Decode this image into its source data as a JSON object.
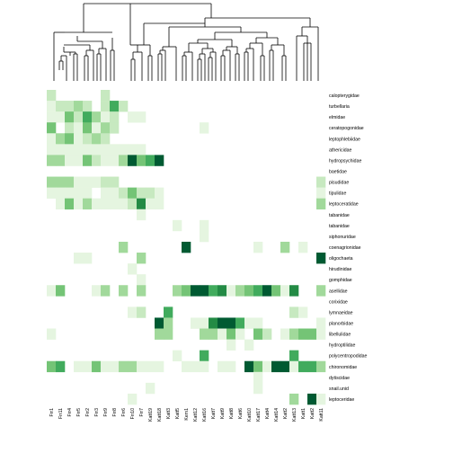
{
  "chart_data": {
    "type": "heatmap",
    "title": "",
    "xlabel": "",
    "ylabel": "",
    "color_scale": [
      "#ffffff",
      "#e5f5e0",
      "#c7e9c0",
      "#a1d99b",
      "#74c476",
      "#41ab5d",
      "#238b45",
      "#005a32"
    ],
    "value_range": [
      0,
      7
    ],
    "columns": [
      "Frr1",
      "Frr11",
      "Frr4",
      "Frr5",
      "Frr2",
      "Frr3",
      "Frr9",
      "Frr8",
      "Frr6",
      "Frr10",
      "Frr7",
      "Katt19",
      "Katt18",
      "Katt3",
      "Katt5",
      "Kem1",
      "Katt12",
      "Katt16",
      "Katt7",
      "Katt9",
      "Katt8",
      "Katt6",
      "Katt10",
      "Katt17",
      "Katt4",
      "Katt14",
      "Katt2",
      "Katt13",
      "Katt1",
      "Katt2",
      "Katt11"
    ],
    "rows": [
      "calopterygidae",
      "turbellaria",
      "elmidae",
      "ceratopogonidae",
      "leptophlebiidae",
      "athericidae",
      "hydropsychidae",
      "baetidae",
      "pisudidae",
      "tipulidae",
      "leptoceratidae",
      "tabanidae",
      "tabanidae",
      "siphonuridae",
      "coenagrionidae",
      "oligochaeta",
      "hirudinidae",
      "gomphidae",
      "asellidae",
      "corixidae",
      "lymnaeidae",
      "planorbidae",
      "libellulidae",
      "hydroptilidae",
      "polycentropodidae",
      "chironomidae",
      "dytiscidae",
      "snail.unid",
      "leptoceridae"
    ],
    "values": [
      [
        2,
        0,
        0,
        0,
        0,
        0,
        2,
        0,
        0,
        0,
        0,
        0,
        0,
        0,
        0,
        0,
        0,
        0,
        0,
        0,
        0,
        0,
        0,
        0,
        0,
        0,
        0,
        0,
        0,
        0,
        0
      ],
      [
        1,
        2,
        2,
        3,
        2,
        0,
        2,
        5,
        2,
        0,
        0,
        0,
        0,
        0,
        0,
        0,
        0,
        0,
        0,
        0,
        0,
        0,
        0,
        0,
        0,
        0,
        0,
        0,
        0,
        0,
        0
      ],
      [
        1,
        1,
        4,
        2,
        5,
        3,
        1,
        2,
        0,
        1,
        1,
        0,
        0,
        0,
        0,
        0,
        0,
        0,
        0,
        0,
        0,
        0,
        0,
        0,
        0,
        0,
        0,
        0,
        0,
        0,
        0
      ],
      [
        4,
        0,
        2,
        1,
        4,
        1,
        3,
        2,
        0,
        0,
        0,
        0,
        0,
        0,
        0,
        0,
        0,
        1,
        0,
        0,
        0,
        0,
        0,
        0,
        0,
        0,
        0,
        0,
        0,
        0,
        0
      ],
      [
        1,
        3,
        4,
        1,
        2,
        3,
        2,
        0,
        0,
        0,
        0,
        0,
        0,
        0,
        0,
        0,
        0,
        0,
        0,
        0,
        0,
        0,
        0,
        0,
        0,
        0,
        0,
        0,
        0,
        0,
        0
      ],
      [
        1,
        1,
        1,
        1,
        1,
        1,
        1,
        1,
        1,
        1,
        1,
        0,
        0,
        0,
        0,
        0,
        0,
        0,
        0,
        0,
        0,
        0,
        0,
        0,
        0,
        0,
        0,
        0,
        0,
        0,
        0
      ],
      [
        3,
        3,
        1,
        1,
        4,
        2,
        1,
        1,
        3,
        7,
        4,
        5,
        7,
        0,
        0,
        0,
        0,
        0,
        0,
        0,
        0,
        0,
        0,
        0,
        0,
        0,
        0,
        0,
        0,
        0,
        0
      ],
      [
        0,
        0,
        0,
        0,
        0,
        0,
        0,
        0,
        0,
        0,
        0,
        0,
        0,
        0,
        0,
        0,
        0,
        0,
        0,
        0,
        0,
        0,
        0,
        0,
        0,
        0,
        0,
        0,
        0,
        0,
        0
      ],
      [
        3,
        3,
        3,
        1,
        1,
        1,
        2,
        2,
        0,
        0,
        0,
        0,
        0,
        0,
        0,
        0,
        0,
        0,
        0,
        0,
        0,
        0,
        0,
        0,
        0,
        0,
        0,
        0,
        0,
        0,
        2
      ],
      [
        1,
        1,
        1,
        1,
        1,
        0,
        1,
        1,
        2,
        4,
        2,
        2,
        1,
        0,
        0,
        0,
        0,
        0,
        0,
        0,
        0,
        0,
        0,
        0,
        0,
        0,
        0,
        0,
        0,
        0,
        1
      ],
      [
        0,
        1,
        4,
        1,
        3,
        1,
        1,
        1,
        1,
        2,
        6,
        1,
        1,
        0,
        0,
        0,
        0,
        0,
        0,
        0,
        0,
        0,
        0,
        0,
        0,
        0,
        0,
        0,
        0,
        0,
        3
      ],
      [
        0,
        0,
        0,
        0,
        0,
        0,
        0,
        0,
        0,
        0,
        1,
        0,
        0,
        0,
        0,
        0,
        0,
        0,
        0,
        0,
        0,
        0,
        0,
        0,
        0,
        0,
        0,
        0,
        0,
        0,
        0
      ],
      [
        0,
        0,
        0,
        0,
        0,
        0,
        0,
        0,
        0,
        0,
        0,
        0,
        0,
        0,
        1,
        0,
        0,
        1,
        0,
        0,
        0,
        0,
        0,
        0,
        0,
        0,
        0,
        0,
        0,
        0,
        0
      ],
      [
        0,
        0,
        0,
        0,
        0,
        0,
        0,
        0,
        0,
        0,
        0,
        0,
        0,
        0,
        0,
        0,
        0,
        1,
        0,
        0,
        0,
        0,
        0,
        0,
        0,
        0,
        0,
        0,
        0,
        0,
        0
      ],
      [
        0,
        0,
        0,
        0,
        0,
        0,
        0,
        0,
        3,
        0,
        0,
        0,
        0,
        0,
        0,
        7,
        0,
        0,
        0,
        0,
        0,
        0,
        0,
        1,
        0,
        0,
        3,
        0,
        1,
        0,
        0
      ],
      [
        0,
        0,
        0,
        1,
        1,
        0,
        0,
        0,
        0,
        0,
        3,
        0,
        0,
        0,
        0,
        0,
        0,
        0,
        0,
        0,
        0,
        0,
        0,
        0,
        0,
        0,
        0,
        0,
        0,
        0,
        7
      ],
      [
        0,
        0,
        0,
        0,
        0,
        0,
        0,
        0,
        0,
        1,
        0,
        0,
        0,
        0,
        0,
        0,
        0,
        0,
        0,
        0,
        0,
        0,
        0,
        0,
        0,
        0,
        0,
        0,
        0,
        0,
        0
      ],
      [
        0,
        0,
        0,
        0,
        0,
        0,
        0,
        0,
        0,
        0,
        1,
        0,
        0,
        0,
        0,
        0,
        0,
        0,
        0,
        0,
        0,
        0,
        0,
        0,
        0,
        0,
        0,
        0,
        0,
        0,
        0
      ],
      [
        1,
        4,
        0,
        0,
        0,
        1,
        3,
        0,
        3,
        0,
        3,
        0,
        0,
        0,
        3,
        4,
        7,
        7,
        5,
        6,
        1,
        3,
        4,
        5,
        7,
        4,
        1,
        6,
        0,
        0,
        3
      ],
      [
        0,
        0,
        0,
        0,
        0,
        0,
        0,
        0,
        0,
        0,
        0,
        0,
        0,
        0,
        0,
        0,
        0,
        0,
        0,
        0,
        0,
        0,
        0,
        0,
        0,
        0,
        0,
        0,
        0,
        0,
        0
      ],
      [
        0,
        0,
        0,
        0,
        0,
        0,
        0,
        0,
        0,
        1,
        2,
        0,
        0,
        5,
        0,
        0,
        0,
        0,
        0,
        0,
        0,
        0,
        0,
        0,
        0,
        0,
        0,
        2,
        1,
        0,
        0
      ],
      [
        0,
        0,
        0,
        0,
        0,
        0,
        0,
        0,
        0,
        0,
        0,
        0,
        7,
        3,
        0,
        0,
        1,
        1,
        6,
        7,
        7,
        5,
        1,
        1,
        0,
        0,
        0,
        0,
        0,
        0,
        1
      ],
      [
        1,
        0,
        0,
        0,
        0,
        0,
        0,
        0,
        0,
        0,
        0,
        0,
        3,
        3,
        0,
        0,
        0,
        3,
        3,
        1,
        4,
        1,
        0,
        4,
        2,
        0,
        1,
        3,
        4,
        4,
        1
      ],
      [
        0,
        0,
        0,
        0,
        0,
        0,
        0,
        0,
        0,
        0,
        0,
        0,
        0,
        0,
        0,
        0,
        0,
        0,
        0,
        0,
        1,
        0,
        1,
        0,
        0,
        0,
        0,
        0,
        0,
        0,
        0
      ],
      [
        0,
        0,
        0,
        0,
        0,
        0,
        0,
        0,
        0,
        0,
        0,
        0,
        0,
        0,
        1,
        0,
        0,
        5,
        0,
        0,
        0,
        0,
        0,
        0,
        0,
        0,
        0,
        5,
        0,
        0,
        0
      ],
      [
        4,
        5,
        0,
        1,
        1,
        4,
        1,
        1,
        3,
        3,
        1,
        1,
        1,
        0,
        0,
        1,
        1,
        1,
        0,
        1,
        1,
        0,
        7,
        4,
        1,
        7,
        7,
        1,
        5,
        5,
        3
      ],
      [
        0,
        0,
        0,
        0,
        0,
        0,
        0,
        0,
        0,
        0,
        0,
        0,
        0,
        0,
        0,
        0,
        0,
        0,
        0,
        0,
        0,
        0,
        0,
        1,
        0,
        0,
        0,
        0,
        0,
        0,
        0
      ],
      [
        0,
        0,
        0,
        0,
        0,
        0,
        0,
        0,
        0,
        0,
        0,
        1,
        0,
        0,
        0,
        0,
        0,
        0,
        0,
        0,
        0,
        0,
        0,
        1,
        0,
        0,
        0,
        0,
        0,
        0,
        0
      ],
      [
        0,
        0,
        0,
        0,
        0,
        0,
        0,
        0,
        0,
        1,
        0,
        0,
        0,
        0,
        0,
        0,
        0,
        0,
        0,
        0,
        0,
        0,
        0,
        0,
        0,
        0,
        0,
        3,
        0,
        7,
        1
      ]
    ],
    "legend": "none",
    "grid": false
  }
}
